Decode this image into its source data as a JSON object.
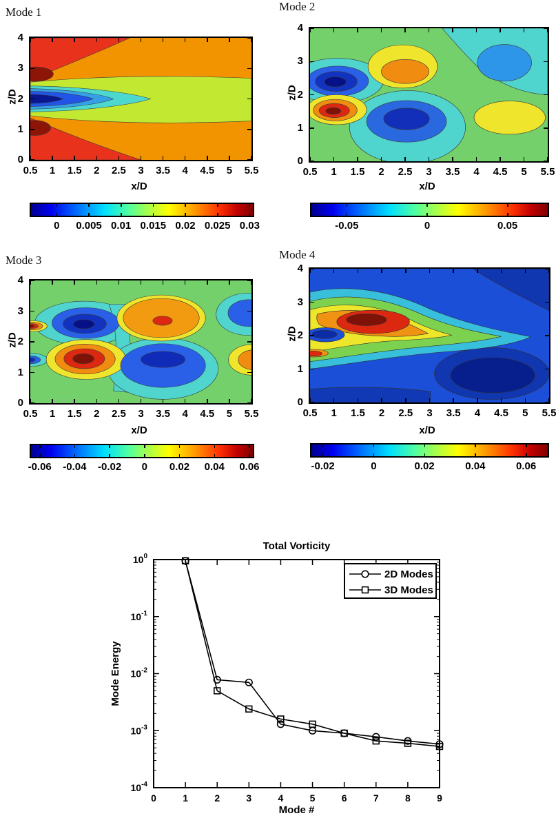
{
  "chart_data": [
    {
      "type": "heatmap",
      "subtype": "filled contour, jet colormap",
      "title": "Mode 1",
      "xlabel": "x/D",
      "ylabel": "z/D",
      "xlim": [
        0.5,
        5.5
      ],
      "ylim": [
        0,
        4
      ],
      "x_ticks": [
        "0.5",
        "1",
        "1.5",
        "2",
        "2.5",
        "3",
        "3.5",
        "4",
        "4.5",
        "5",
        "5.5"
      ],
      "y_ticks": [
        "0",
        "1",
        "2",
        "3",
        "4"
      ],
      "colorbar": {
        "range": [
          -0.004,
          0.0305
        ],
        "ticks": [
          "0",
          "0.005",
          "0.01",
          "0.015",
          "0.02",
          "0.025",
          "0.03"
        ]
      },
      "features": [
        {
          "x": 0.7,
          "z": 2.0,
          "value": -0.004,
          "desc": "dark-blue minimum core on centerline near inlet"
        },
        {
          "x": 1.5,
          "z": 2.0,
          "value": 0.005,
          "desc": "cyan/blue tongue along centerline tapering to x/D=3.2"
        },
        {
          "x": 4.0,
          "z": 2.0,
          "value": 0.015,
          "desc": "yellow-green band z/D 1.4-2.6 spanning to right edge"
        },
        {
          "x": 4.0,
          "z": 3.5,
          "value": 0.02,
          "desc": "orange background above and below band"
        },
        {
          "x": 1.0,
          "z": 3.6,
          "value": 0.028,
          "desc": "red wedge upper-left"
        },
        {
          "x": 1.2,
          "z": 0.4,
          "value": 0.028,
          "desc": "red wedge lower-left"
        },
        {
          "x": 0.6,
          "z": 2.8,
          "value": 0.03,
          "desc": "dark-red spot at left edge"
        },
        {
          "x": 0.6,
          "z": 1.0,
          "value": 0.03,
          "desc": "dark-red spot at left edge"
        }
      ]
    },
    {
      "type": "heatmap",
      "subtype": "filled contour, jet colormap",
      "title": "Mode 2",
      "xlabel": "x/D",
      "ylabel": "z/D",
      "xlim": [
        0.5,
        5.5
      ],
      "ylim": [
        0,
        4
      ],
      "x_ticks": [
        "0.5",
        "1",
        "1.5",
        "2",
        "2.5",
        "3",
        "3.5",
        "4",
        "4.5",
        "5",
        "5.5"
      ],
      "y_ticks": [
        "0",
        "1",
        "2",
        "3",
        "4"
      ],
      "colorbar": {
        "range": [
          -0.072,
          0.075
        ],
        "ticks": [
          "-0.05",
          "0",
          "0.05"
        ]
      },
      "features": [
        {
          "x": 1.05,
          "z": 2.4,
          "value": -0.07,
          "desc": "dark-blue negative vortex core"
        },
        {
          "x": 1.05,
          "z": 1.55,
          "value": 0.073,
          "desc": "dark-red positive vortex core"
        },
        {
          "x": 2.45,
          "z": 2.75,
          "value": 0.045,
          "desc": "yellow blob with orange core"
        },
        {
          "x": 2.5,
          "z": 1.25,
          "value": -0.05,
          "desc": "blue negative blob in cyan region"
        },
        {
          "x": 4.6,
          "z": 3.0,
          "value": -0.035,
          "desc": "light-blue negative blob in cyan region"
        },
        {
          "x": 4.65,
          "z": 1.35,
          "value": 0.03,
          "desc": "yellow positive blob"
        },
        {
          "x": 3.5,
          "z": 0.2,
          "value": 0,
          "desc": "green background near zero"
        }
      ]
    },
    {
      "type": "heatmap",
      "subtype": "filled contour, jet colormap",
      "title": "Mode 3",
      "xlabel": "x/D",
      "ylabel": "z/D",
      "xlim": [
        0.5,
        5.5
      ],
      "ylim": [
        0,
        4
      ],
      "x_ticks": [
        "0.5",
        "1",
        "1.5",
        "2",
        "2.5",
        "3",
        "3.5",
        "4",
        "4.5",
        "5",
        "5.5"
      ],
      "y_ticks": [
        "0",
        "1",
        "2",
        "3",
        "4"
      ],
      "colorbar": {
        "range": [
          -0.065,
          0.062
        ],
        "ticks": [
          "-0.06",
          "-0.04",
          "-0.02",
          "0",
          "0.02",
          "0.04",
          "0.06"
        ]
      },
      "features": [
        {
          "x": 1.7,
          "z": 2.6,
          "value": -0.062,
          "desc": "dark-blue negative vortex"
        },
        {
          "x": 1.75,
          "z": 1.45,
          "value": 0.062,
          "desc": "dark-red positive vortex with orange/yellow rings"
        },
        {
          "x": 0.55,
          "z": 2.5,
          "value": 0.05,
          "desc": "small red spot at left edge"
        },
        {
          "x": 0.55,
          "z": 1.4,
          "value": -0.04,
          "desc": "small blue spot at left edge"
        },
        {
          "x": 3.45,
          "z": 2.8,
          "value": 0.045,
          "desc": "orange blob with red core"
        },
        {
          "x": 3.5,
          "z": 1.3,
          "value": -0.05,
          "desc": "large blue negative blob, dark core at z/D 1.45"
        },
        {
          "x": 5.4,
          "z": 2.9,
          "value": -0.04,
          "desc": "blue blob at top-right edge"
        },
        {
          "x": 5.5,
          "z": 1.4,
          "value": 0.04,
          "desc": "orange blob at right edge"
        }
      ]
    },
    {
      "type": "heatmap",
      "subtype": "filled contour, jet colormap",
      "title": "Mode 4",
      "xlabel": "x/D",
      "ylabel": "z/D",
      "xlim": [
        0.5,
        5.5
      ],
      "ylim": [
        0,
        4
      ],
      "x_ticks": [
        "0.5",
        "1",
        "1.5",
        "2",
        "2.5",
        "3",
        "3.5",
        "4",
        "4.5",
        "5",
        "5.5"
      ],
      "y_ticks": [
        "0",
        "1",
        "2",
        "3",
        "4"
      ],
      "colorbar": {
        "range": [
          -0.0245,
          0.0685
        ],
        "ticks": [
          "-0.02",
          "0",
          "0.02",
          "0.04",
          "0.06"
        ]
      },
      "features": [
        {
          "x": 1.7,
          "z": 2.45,
          "value": 0.068,
          "desc": "dark-red maximum with nested contours trailing downstream to x/D=5 along z/D=2.2"
        },
        {
          "x": 0.65,
          "z": 1.45,
          "value": 0.05,
          "desc": "red/orange streak near inlet"
        },
        {
          "x": 0.8,
          "z": 2.05,
          "value": -0.02,
          "desc": "small dark-blue spot"
        },
        {
          "x": 4.3,
          "z": 0.9,
          "value": -0.024,
          "desc": "dark-blue negative region lower right"
        },
        {
          "x": 5.0,
          "z": 3.8,
          "value": -0.02,
          "desc": "dark-blue upper-right corner"
        },
        {
          "x": 3.0,
          "z": 0.3,
          "value": -0.01,
          "desc": "blue background"
        }
      ]
    },
    {
      "type": "line",
      "title": "Total Vorticity",
      "xlabel": "Mode #",
      "ylabel": "Mode Energy",
      "xlim": [
        0,
        9
      ],
      "ylim": [
        0.0001,
        1
      ],
      "yscale": "log",
      "grid": false,
      "legend_position": "top-right",
      "x_ticks": [
        "0",
        "1",
        "2",
        "3",
        "4",
        "5",
        "6",
        "7",
        "8",
        "9"
      ],
      "y_tick_exponents": [
        "0",
        "-1",
        "-2",
        "-3",
        "-4"
      ],
      "x": [
        1,
        2,
        3,
        4,
        5,
        6,
        7,
        8,
        9
      ],
      "series": [
        {
          "name": "2D Modes",
          "marker": "circle",
          "values": [
            0.95,
            0.0078,
            0.007,
            0.0013,
            0.001,
            0.0009,
            0.00078,
            0.00066,
            0.00058
          ]
        },
        {
          "name": "3D Modes",
          "marker": "square",
          "values": [
            0.95,
            0.005,
            0.0024,
            0.0016,
            0.0013,
            0.0009,
            0.00066,
            0.0006,
            0.00053
          ]
        }
      ]
    }
  ]
}
